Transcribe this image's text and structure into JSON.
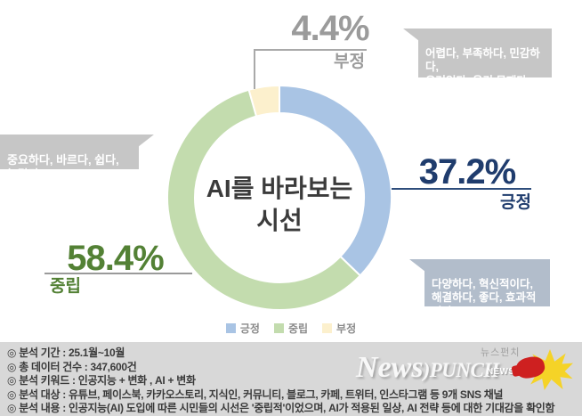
{
  "chart_data": {
    "type": "pie",
    "donut": true,
    "title": "AI를 바라보는 시선",
    "center_label": "AI를 바라보는\n시선",
    "start_angle_deg": -90,
    "direction": "clockwise",
    "legend_position": "bottom",
    "series": [
      {
        "name": "긍정",
        "value": 37.2,
        "label": "37.2%",
        "color": "#a9c4e4",
        "text_color": "#1f3c6d"
      },
      {
        "name": "중립",
        "value": 58.4,
        "label": "58.4%",
        "color": "#c3dcae",
        "text_color": "#538135"
      },
      {
        "name": "부정",
        "value": 4.4,
        "label": "4.4%",
        "color": "#fcf0cd",
        "text_color": "#9b9b9b"
      }
    ]
  },
  "callouts": {
    "negative": {
      "text": "어렵다, 부족하다, 민감하다,\n우려있다, 윤리 문제다,\n불필요하다, 한계있다",
      "bg": "#c6c6c6"
    },
    "neutral": {
      "text": "중요하다, 바르다, 쉽다, 놀랍다,\n거대하다, 변화 이끌다",
      "bg": "#c6c6c6"
    },
    "positive": {
      "text": "다양하다, 혁신적이다,\n해결하다, 좋다, 효과적이다,\n성장하다, 기대된다",
      "bg": "#b2bdcb"
    }
  },
  "footer": {
    "lines": [
      "◎ 분석 기간 : 25.1월~10월",
      "◎ 총 데이터 건수 : 347,600건",
      "◎ 분석 키워드 : 인공지능 + 변화 , AI + 변화",
      "◎ 분석 대상 : 유튜브, 페이스북, 카카오스토리, 지식인, 커뮤니티, 블로그, 카페, 트위터, 인스타그램 등 9개 SNS 채널",
      "◎ 분석 내용 : 인공지능(AI) 도입에 따른 시민들의 시선은 '중립적'이었으며, AI가 적용된 일상, AI 전략 등에 대한 기대감을 확인함"
    ],
    "logo": {
      "korean": "뉴스펀치",
      "news": "News",
      "punch": ")PUNCH",
      "badge": "NEWSPUNCH"
    }
  }
}
